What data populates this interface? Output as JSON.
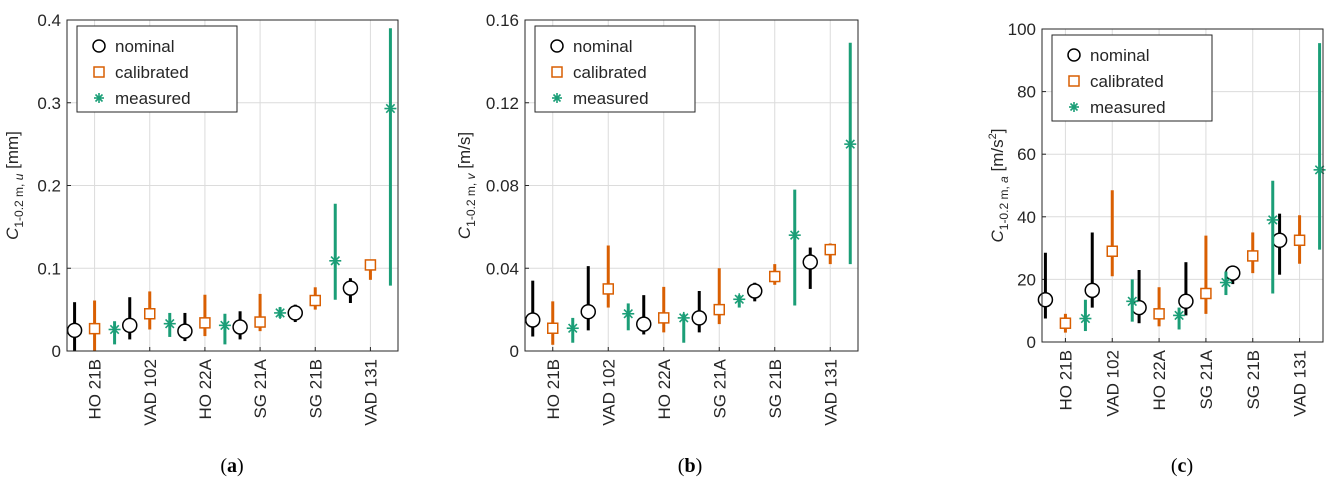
{
  "colors": {
    "nominal": "#000000",
    "calibrated": "#d95f02",
    "measured": "#1b9e77"
  },
  "chart_data": [
    {
      "type": "errorbar",
      "panel_label": "a",
      "ylabel_main": "C",
      "ylabel_sub": "1-0.2 m, ",
      "ylabel_sym": "u",
      "ylabel_unit": " [mm]",
      "ylim": [
        0,
        0.4
      ],
      "yticks": [
        0,
        0.1,
        0.2,
        0.3,
        0.4
      ],
      "ytick_labels": [
        "0",
        "0.1",
        "0.2",
        "0.3",
        "0.4"
      ],
      "grid": true,
      "legend_position": "top-left",
      "categories": [
        "HO 21B",
        "VAD 102",
        "HO 22A",
        "SG 21A",
        "SG 21B",
        "VAD 131"
      ],
      "series": [
        {
          "name": "nominal",
          "marker": "circle",
          "values": [
            0.025,
            0.031,
            0.024,
            0.029,
            0.046,
            0.076
          ],
          "low": [
            0.0,
            0.014,
            0.012,
            0.014,
            0.035,
            0.058
          ],
          "high": [
            0.059,
            0.065,
            0.046,
            0.048,
            0.056,
            0.088
          ]
        },
        {
          "name": "calibrated",
          "marker": "square",
          "values": [
            0.027,
            0.045,
            0.034,
            0.035,
            0.061,
            0.104
          ],
          "low": [
            0.0,
            0.026,
            0.018,
            0.024,
            0.05,
            0.086
          ],
          "high": [
            0.061,
            0.072,
            0.068,
            0.069,
            0.077,
            0.106
          ]
        },
        {
          "name": "measured",
          "marker": "asterisk",
          "values": [
            0.026,
            0.033,
            0.031,
            0.046,
            0.109,
            0.293
          ],
          "low": [
            0.008,
            0.017,
            0.008,
            0.04,
            0.062,
            0.079
          ],
          "high": [
            0.036,
            0.046,
            0.045,
            0.053,
            0.178,
            0.39
          ]
        }
      ]
    },
    {
      "type": "errorbar",
      "panel_label": "b",
      "ylabel_main": "C",
      "ylabel_sub": "1-0.2 m, ",
      "ylabel_sym": "v",
      "ylabel_unit": " [m/s]",
      "ylim": [
        0,
        0.16
      ],
      "yticks": [
        0,
        0.04,
        0.08,
        0.12,
        0.16
      ],
      "ytick_labels": [
        "0",
        "0.04",
        "0.08",
        "0.12",
        "0.16"
      ],
      "grid": true,
      "legend_position": "top-left",
      "categories": [
        "HO 21B",
        "VAD 102",
        "HO 22A",
        "SG 21A",
        "SG 21B",
        "VAD 131"
      ],
      "series": [
        {
          "name": "nominal",
          "marker": "circle",
          "values": [
            0.015,
            0.019,
            0.013,
            0.016,
            0.029,
            0.043
          ],
          "low": [
            0.007,
            0.01,
            0.008,
            0.009,
            0.024,
            0.03
          ],
          "high": [
            0.034,
            0.041,
            0.027,
            0.029,
            0.033,
            0.05
          ]
        },
        {
          "name": "calibrated",
          "marker": "square",
          "values": [
            0.011,
            0.03,
            0.016,
            0.02,
            0.036,
            0.049
          ],
          "low": [
            0.003,
            0.021,
            0.009,
            0.013,
            0.032,
            0.042
          ],
          "high": [
            0.024,
            0.051,
            0.031,
            0.04,
            0.042,
            0.052
          ]
        },
        {
          "name": "measured",
          "marker": "asterisk",
          "values": [
            0.011,
            0.018,
            0.016,
            0.025,
            0.056,
            0.1
          ],
          "low": [
            0.004,
            0.01,
            0.004,
            0.021,
            0.022,
            0.042
          ],
          "high": [
            0.016,
            0.023,
            0.018,
            0.027,
            0.078,
            0.149
          ]
        }
      ]
    },
    {
      "type": "errorbar",
      "panel_label": "c",
      "ylabel_main": "C",
      "ylabel_sub": "1-0.2 m, ",
      "ylabel_sym": "a",
      "ylabel_unit": " [m/s",
      "ylabel_sup": "2",
      "ylabel_close": "]",
      "ylim": [
        0,
        100
      ],
      "yticks": [
        0,
        20,
        40,
        60,
        80,
        100
      ],
      "ytick_labels": [
        "0",
        "20",
        "40",
        "60",
        "80",
        "100"
      ],
      "grid": true,
      "legend_position": "top-left",
      "categories": [
        "HO 21B",
        "VAD 102",
        "HO 22A",
        "SG 21A",
        "SG 21B",
        "VAD 131"
      ],
      "series": [
        {
          "name": "nominal",
          "marker": "circle",
          "values": [
            13.5,
            16.5,
            11,
            13,
            22,
            32.5
          ],
          "low": [
            7.5,
            11,
            6,
            8.5,
            18.5,
            21.5
          ],
          "high": [
            28.5,
            35,
            23,
            25.5,
            23.5,
            41
          ]
        },
        {
          "name": "calibrated",
          "marker": "square",
          "values": [
            6,
            29,
            9,
            15.5,
            27.5,
            32.5
          ],
          "low": [
            3,
            21,
            5,
            9,
            22,
            25
          ],
          "high": [
            9,
            48.5,
            17.5,
            34,
            35,
            40.5
          ]
        },
        {
          "name": "measured",
          "marker": "asterisk",
          "values": [
            7.5,
            13,
            8.5,
            19,
            39,
            55
          ],
          "low": [
            3.5,
            6.5,
            4,
            15,
            15.5,
            29.5
          ],
          "high": [
            13.5,
            20,
            11,
            22.5,
            51.5,
            95.5
          ]
        }
      ]
    }
  ]
}
